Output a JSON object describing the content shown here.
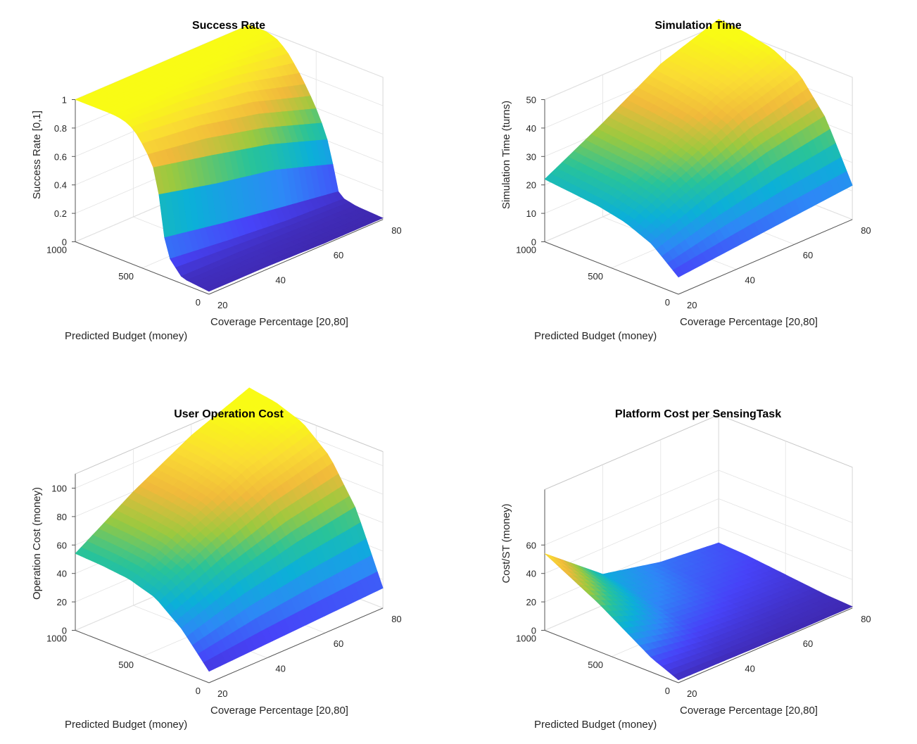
{
  "figure": {
    "colormap": [
      "#3e26a8",
      "#4743f8",
      "#2e87f7",
      "#0bb0d8",
      "#28c39a",
      "#9bc93f",
      "#f0b93b",
      "#fadc33",
      "#f9fb15"
    ]
  },
  "chart_data": [
    {
      "type": "surface",
      "title": "Success Rate",
      "xlabel": "Coverage Percentage [20,80]",
      "ylabel": "Predicted Budget (money)",
      "zlabel": "Success Rate [0,1]",
      "xlim": [
        20,
        80
      ],
      "ylim": [
        0,
        1000
      ],
      "zlim": [
        0,
        1
      ],
      "xticks": [
        "20",
        "40",
        "60",
        "80"
      ],
      "yticks": [
        "0",
        "500",
        "1000"
      ],
      "zticks": [
        "0",
        "0.2",
        "0.4",
        "0.6",
        "0.8",
        "1"
      ],
      "grid": true,
      "ridges": [
        {
          "coverage": 20,
          "budget": [
            0,
            200,
            300,
            340,
            360,
            380,
            420,
            480,
            560,
            640,
            720,
            800,
            880,
            960,
            1000
          ],
          "value": [
            0.02,
            0.04,
            0.15,
            0.3,
            0.45,
            0.6,
            0.75,
            0.85,
            0.95,
            0.99,
            1,
            1,
            1,
            1,
            1
          ]
        },
        {
          "coverage": 40,
          "budget": [
            0,
            200,
            300,
            340,
            360,
            380,
            420,
            480,
            560,
            640,
            720,
            800,
            880,
            960,
            1000
          ],
          "value": [
            0.02,
            0.04,
            0.1,
            0.22,
            0.36,
            0.5,
            0.66,
            0.8,
            0.9,
            0.97,
            1,
            1,
            1,
            1,
            1
          ]
        },
        {
          "coverage": 60,
          "budget": [
            0,
            200,
            300,
            340,
            360,
            380,
            420,
            480,
            560,
            640,
            720,
            800,
            880,
            960,
            1000
          ],
          "value": [
            0.01,
            0.03,
            0.06,
            0.15,
            0.28,
            0.42,
            0.56,
            0.7,
            0.83,
            0.92,
            0.98,
            1,
            1,
            1,
            1
          ]
        },
        {
          "coverage": 80,
          "budget": [
            0,
            200,
            300,
            340,
            360,
            380,
            420,
            480,
            560,
            640,
            720,
            800,
            880,
            960,
            1000
          ],
          "value": [
            0.01,
            0.02,
            0.04,
            0.08,
            0.16,
            0.28,
            0.42,
            0.56,
            0.7,
            0.82,
            0.92,
            0.98,
            1,
            1,
            1
          ]
        }
      ]
    },
    {
      "type": "surface",
      "title": "Simulation Time",
      "xlabel": "Coverage Percentage [20,80]",
      "ylabel": "Predicted Budget (money)",
      "zlabel": "Simulation Time (turns)",
      "xlim": [
        20,
        80
      ],
      "ylim": [
        0,
        1000
      ],
      "zlim": [
        0,
        50
      ],
      "xticks": [
        "20",
        "40",
        "60",
        "80"
      ],
      "yticks": [
        "0",
        "500",
        "1000"
      ],
      "zticks": [
        "0",
        "10",
        "20",
        "30",
        "40",
        "50"
      ],
      "grid": true,
      "ridges": [
        {
          "coverage": 20,
          "budget": [
            0,
            200,
            400,
            600,
            800,
            1000
          ],
          "value": [
            6,
            14,
            18,
            20,
            21,
            22
          ]
        },
        {
          "coverage": 40,
          "budget": [
            0,
            200,
            400,
            600,
            800,
            1000
          ],
          "value": [
            8,
            22,
            28,
            31,
            32,
            33
          ]
        },
        {
          "coverage": 60,
          "budget": [
            0,
            200,
            400,
            600,
            800,
            1000
          ],
          "value": [
            10,
            28,
            38,
            42,
            44,
            45
          ]
        },
        {
          "coverage": 80,
          "budget": [
            0,
            200,
            400,
            600,
            800,
            1000
          ],
          "value": [
            12,
            32,
            44,
            49,
            51,
            52
          ]
        }
      ]
    },
    {
      "type": "surface",
      "title": "User Operation Cost",
      "xlabel": "Coverage Percentage [20,80]",
      "ylabel": "Predicted Budget (money)",
      "zlabel": "Operation Cost (money)",
      "xlim": [
        20,
        80
      ],
      "ylim": [
        0,
        1000
      ],
      "zlim": [
        0,
        110
      ],
      "xticks": [
        "20",
        "40",
        "60",
        "80"
      ],
      "yticks": [
        "0",
        "500",
        "1000"
      ],
      "zticks": [
        "0",
        "20",
        "40",
        "60",
        "80",
        "100"
      ],
      "grid": true,
      "ridges": [
        {
          "coverage": 20,
          "budget": [
            0,
            200,
            400,
            600,
            800,
            1000
          ],
          "value": [
            8,
            30,
            45,
            51,
            53,
            54
          ]
        },
        {
          "coverage": 40,
          "budget": [
            0,
            200,
            400,
            600,
            800,
            1000
          ],
          "value": [
            10,
            45,
            65,
            75,
            78,
            80
          ]
        },
        {
          "coverage": 60,
          "budget": [
            0,
            200,
            400,
            600,
            800,
            1000
          ],
          "value": [
            12,
            55,
            82,
            95,
            100,
            102
          ]
        },
        {
          "coverage": 80,
          "budget": [
            0,
            200,
            400,
            600,
            800,
            1000
          ],
          "value": [
            14,
            62,
            92,
            108,
            115,
            118
          ]
        }
      ]
    },
    {
      "type": "surface",
      "title": "Platform Cost per SensingTask",
      "xlabel": "Coverage Percentage [20,80]",
      "ylabel": "Predicted Budget (money)",
      "zlabel": "Cost/ST (money)",
      "xlim": [
        20,
        80
      ],
      "ylim": [
        0,
        1000
      ],
      "zlim": [
        0,
        60
      ],
      "xticks": [
        "20",
        "40",
        "60",
        "80"
      ],
      "yticks": [
        "0",
        "500",
        "1000"
      ],
      "zticks": [
        "0",
        "20",
        "40",
        "60"
      ],
      "grid": true,
      "ridges": [
        {
          "coverage": 20,
          "budget": [
            0,
            200,
            400,
            600,
            800,
            1000
          ],
          "value": [
            2,
            10,
            22,
            34,
            44,
            54
          ]
        },
        {
          "coverage": 40,
          "budget": [
            0,
            200,
            400,
            600,
            800,
            1000
          ],
          "value": [
            1.5,
            5,
            10,
            15,
            19,
            22
          ]
        },
        {
          "coverage": 60,
          "budget": [
            0,
            200,
            400,
            600,
            800,
            1000
          ],
          "value": [
            1,
            3,
            6,
            9,
            11,
            13
          ]
        },
        {
          "coverage": 80,
          "budget": [
            0,
            200,
            400,
            600,
            800,
            1000
          ],
          "value": [
            1,
            2,
            4,
            6,
            8,
            9
          ]
        }
      ]
    }
  ]
}
